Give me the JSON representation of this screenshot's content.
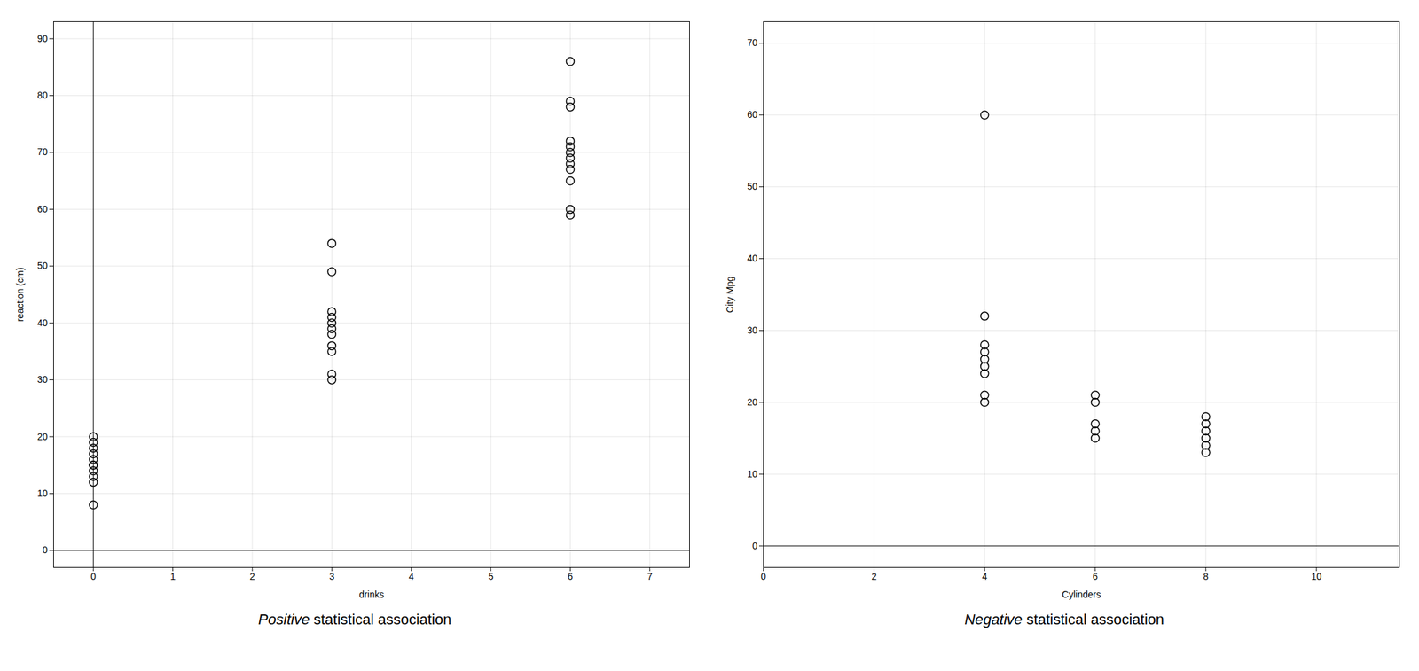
{
  "chart_data": [
    {
      "type": "scatter",
      "title": "Positive statistical association",
      "xlabel": "drinks",
      "ylabel": "reaction (cm)",
      "xlim": [
        -0.5,
        7.5
      ],
      "ylim": [
        -3,
        93
      ],
      "xticks": [
        0,
        1,
        2,
        3,
        4,
        5,
        6,
        7
      ],
      "yticks": [
        0,
        10,
        20,
        30,
        40,
        50,
        60,
        70,
        80,
        90
      ],
      "grid": true,
      "x": [
        0,
        0,
        0,
        0,
        0,
        0,
        0,
        0,
        0,
        0,
        0,
        3,
        3,
        3,
        3,
        3,
        3,
        3,
        3,
        3,
        3,
        3,
        6,
        6,
        6,
        6,
        6,
        6,
        6,
        6,
        6,
        6,
        6,
        6
      ],
      "values": [
        8,
        12,
        13,
        14,
        15,
        15,
        16,
        17,
        18,
        19,
        20,
        30,
        31,
        35,
        36,
        38,
        39,
        40,
        41,
        42,
        49,
        54,
        59,
        60,
        65,
        67,
        68,
        69,
        70,
        71,
        72,
        78,
        79,
        86
      ]
    },
    {
      "type": "scatter",
      "title": "Negative statistical association",
      "xlabel": "Cylinders",
      "ylabel": "City Mpg",
      "xlim": [
        0,
        11.5
      ],
      "ylim": [
        -3,
        73
      ],
      "xticks": [
        0,
        2,
        4,
        6,
        8,
        10
      ],
      "yticks": [
        0,
        10,
        20,
        30,
        40,
        50,
        60,
        70
      ],
      "grid": true,
      "x": [
        4,
        4,
        4,
        4,
        4,
        4,
        4,
        4,
        4,
        6,
        6,
        6,
        6,
        6,
        8,
        8,
        8,
        8,
        8,
        8
      ],
      "values": [
        20,
        21,
        24,
        25,
        26,
        27,
        28,
        32,
        60,
        15,
        16,
        17,
        20,
        21,
        13,
        14,
        15,
        16,
        17,
        18
      ]
    }
  ]
}
